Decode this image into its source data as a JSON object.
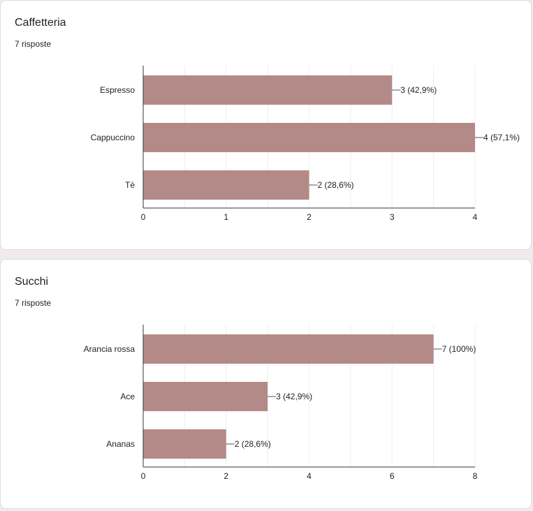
{
  "cards": [
    {
      "title": "Caffetteria",
      "responses": "7 risposte"
    },
    {
      "title": "Succhi",
      "responses": "7 risposte"
    }
  ],
  "colors": {
    "bar": "#b38a88",
    "grid": "#eeeeee",
    "axis": "#333333",
    "background": "#f1ebf0"
  },
  "chart_data": [
    {
      "type": "bar",
      "orientation": "horizontal",
      "categories": [
        "Espresso",
        "Cappuccino",
        "Tè"
      ],
      "values": [
        3,
        4,
        2
      ],
      "data_labels": [
        "3 (42,9%)",
        "4 (57,1%)",
        "2 (28,6%)"
      ],
      "xlim": [
        0,
        4
      ],
      "xticks": [
        0,
        1,
        2,
        3,
        4
      ],
      "grid": true
    },
    {
      "type": "bar",
      "orientation": "horizontal",
      "categories": [
        "Arancia rossa",
        "Ace",
        "Ananas"
      ],
      "values": [
        7,
        3,
        2
      ],
      "data_labels": [
        "7 (100%)",
        "3 (42,9%)",
        "2 (28,6%)"
      ],
      "xlim": [
        0,
        8
      ],
      "xticks": [
        0,
        2,
        4,
        6,
        8
      ],
      "grid": true
    }
  ]
}
